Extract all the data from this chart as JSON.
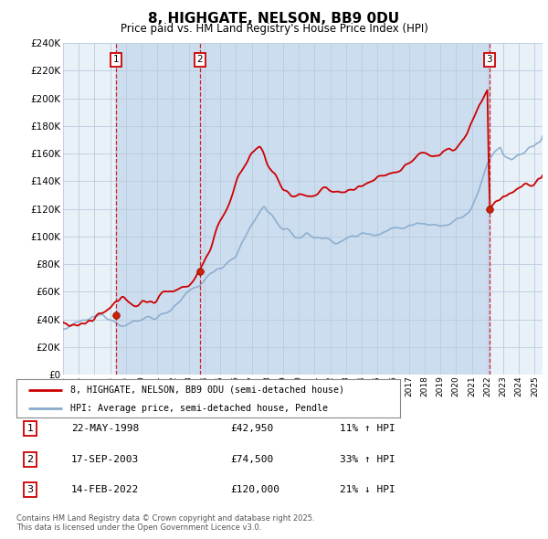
{
  "title": "8, HIGHGATE, NELSON, BB9 0DU",
  "subtitle": "Price paid vs. HM Land Registry's House Price Index (HPI)",
  "legend_line1": "8, HIGHGATE, NELSON, BB9 0DU (semi-detached house)",
  "legend_line2": "HPI: Average price, semi-detached house, Pendle",
  "footer": "Contains HM Land Registry data © Crown copyright and database right 2025.\nThis data is licensed under the Open Government Licence v3.0.",
  "sales": [
    {
      "num": 1,
      "date": "22-MAY-1998",
      "price": 42950,
      "pct": "11%",
      "dir": "↑"
    },
    {
      "num": 2,
      "date": "17-SEP-2003",
      "price": 74500,
      "pct": "33%",
      "dir": "↑"
    },
    {
      "num": 3,
      "date": "14-FEB-2022",
      "price": 120000,
      "pct": "21%",
      "dir": "↓"
    }
  ],
  "sale_dates_year": [
    1998.38,
    2003.71,
    2022.12
  ],
  "sale_prices": [
    42950,
    74500,
    120000
  ],
  "ylim": [
    0,
    240000
  ],
  "yticks": [
    0,
    20000,
    40000,
    60000,
    80000,
    100000,
    120000,
    140000,
    160000,
    180000,
    200000,
    220000,
    240000
  ],
  "property_color": "#cc0000",
  "hpi_color": "#88aacc",
  "dashed_color": "#cc0000",
  "shading_color": "#ccddef",
  "bg_color": "#e8f0f8",
  "grid_color": "#bbccdd"
}
